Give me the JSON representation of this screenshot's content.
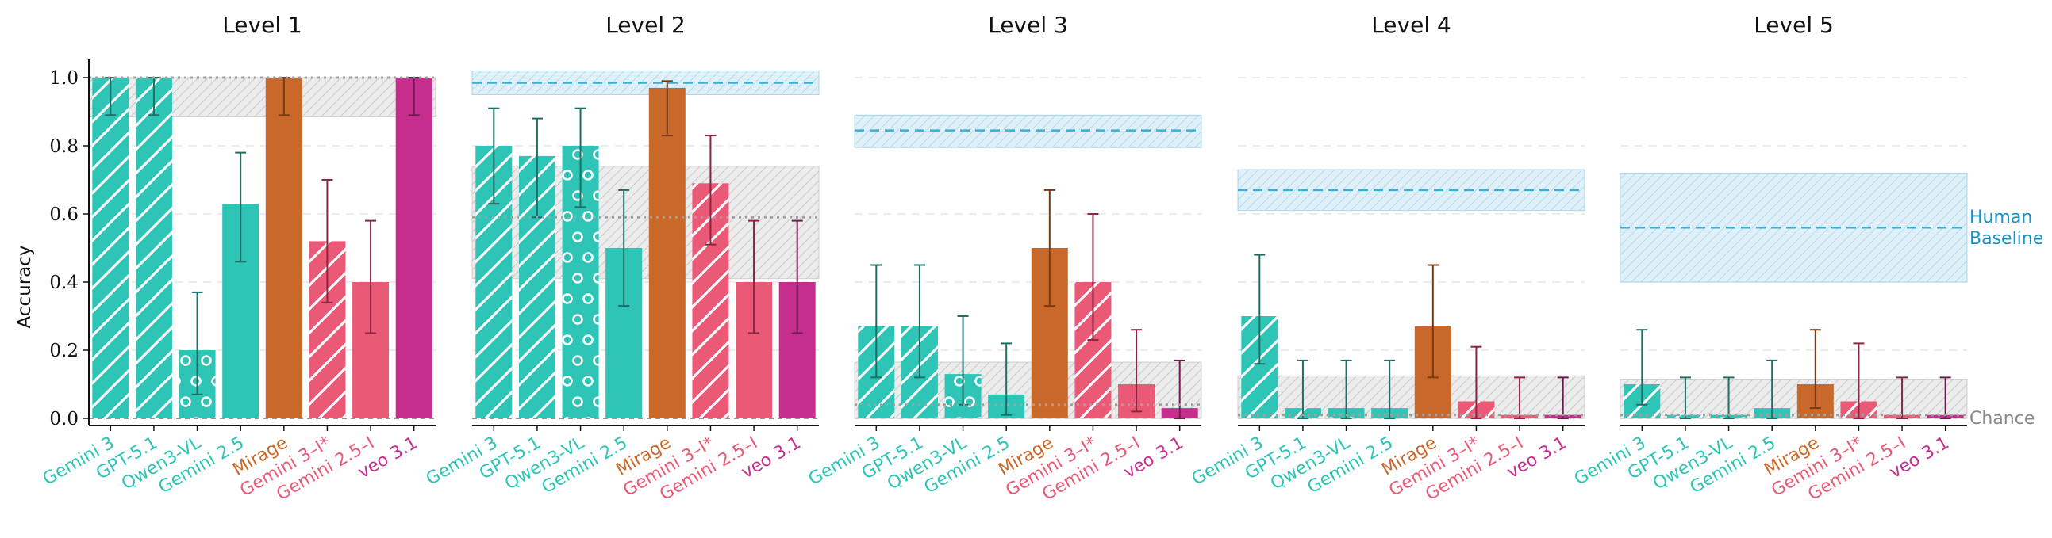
{
  "colors": {
    "teal": "#2EC4B6",
    "teal_err": "#1E6E64",
    "orange": "#C8692B",
    "orange_err": "#7A3A12",
    "pink": "#EA5A77",
    "pink_err": "#8B2440",
    "magenta": "#C62E8E",
    "magenta_err": "#701850",
    "human": "#3AAED8",
    "human_label": "#1B92C4",
    "chance_label": "#888888"
  },
  "y_axis_label": "Accuracy",
  "human_label_line1": "Human",
  "human_label_line2": "Baseline",
  "chance_label": "Chance",
  "chart_data": [
    {
      "type": "bar",
      "title": "Level 1",
      "categories": [
        "Gemini 3",
        "GPT-5.1",
        "Qwen3-VL",
        "Gemini 2.5",
        "Mirage",
        "Gemini 3–I*",
        "Gemini 2.5–I",
        "veo 3.1"
      ],
      "values": [
        1.0,
        1.0,
        0.2,
        0.63,
        1.0,
        0.52,
        0.4,
        1.0
      ],
      "err_low": [
        0.89,
        0.89,
        0.07,
        0.46,
        0.89,
        0.34,
        0.25,
        0.89
      ],
      "err_high": [
        1.0,
        1.0,
        0.37,
        0.78,
        1.0,
        0.7,
        0.58,
        1.0
      ],
      "human_mean": null,
      "human_low": null,
      "human_high": null,
      "gray_low": 0.885,
      "gray_high": 1.0,
      "gray_mean": 1.0,
      "chance": 0.0,
      "ylim": [
        0,
        1.0
      ],
      "yticks": [
        "0.0",
        "0.2",
        "0.4",
        "0.6",
        "0.8",
        "1.0"
      ]
    },
    {
      "type": "bar",
      "title": "Level 2",
      "categories": [
        "Gemini 3",
        "GPT-5.1",
        "Qwen3-VL",
        "Gemini 2.5",
        "Mirage",
        "Gemini 3–I*",
        "Gemini 2.5–I",
        "veo 3.1"
      ],
      "values": [
        0.8,
        0.77,
        0.8,
        0.5,
        0.97,
        0.69,
        0.4,
        0.4
      ],
      "err_low": [
        0.63,
        0.59,
        0.62,
        0.33,
        0.83,
        0.51,
        0.25,
        0.25
      ],
      "err_high": [
        0.91,
        0.88,
        0.91,
        0.67,
        0.99,
        0.83,
        0.58,
        0.58
      ],
      "human_mean": 0.985,
      "human_low": 0.95,
      "human_high": 1.02,
      "gray_low": 0.41,
      "gray_high": 0.74,
      "gray_mean": 0.59,
      "chance": 0.0,
      "ylim": [
        0,
        1.0
      ]
    },
    {
      "type": "bar",
      "title": "Level 3",
      "categories": [
        "Gemini 3",
        "GPT-5.1",
        "Qwen3-VL",
        "Gemini 2.5",
        "Mirage",
        "Gemini 3–I*",
        "Gemini 2.5–I",
        "veo 3.1"
      ],
      "values": [
        0.27,
        0.27,
        0.13,
        0.07,
        0.5,
        0.4,
        0.1,
        0.03
      ],
      "err_low": [
        0.12,
        0.12,
        0.04,
        0.01,
        0.33,
        0.23,
        0.02,
        0.0
      ],
      "err_high": [
        0.45,
        0.45,
        0.3,
        0.22,
        0.67,
        0.6,
        0.26,
        0.17
      ],
      "human_mean": 0.845,
      "human_low": 0.795,
      "human_high": 0.89,
      "gray_low": 0.0,
      "gray_high": 0.165,
      "gray_mean": 0.04,
      "chance": 0.0,
      "ylim": [
        0,
        1.0
      ]
    },
    {
      "type": "bar",
      "title": "Level 4",
      "categories": [
        "Gemini 3",
        "GPT-5.1",
        "Qwen3-VL",
        "Gemini 2.5",
        "Mirage",
        "Gemini 3–I*",
        "Gemini 2.5–I",
        "veo 3.1"
      ],
      "values": [
        0.3,
        0.03,
        0.03,
        0.03,
        0.27,
        0.05,
        0.01,
        0.01
      ],
      "err_low": [
        0.16,
        0.0,
        0.0,
        0.0,
        0.12,
        0.0,
        0.0,
        0.0
      ],
      "err_high": [
        0.48,
        0.17,
        0.17,
        0.17,
        0.45,
        0.21,
        0.12,
        0.12
      ],
      "human_mean": 0.67,
      "human_low": 0.61,
      "human_high": 0.73,
      "gray_low": 0.0,
      "gray_high": 0.125,
      "gray_mean": 0.01,
      "chance": 0.0,
      "ylim": [
        0,
        1.0
      ]
    },
    {
      "type": "bar",
      "title": "Level 5",
      "categories": [
        "Gemini 3",
        "GPT-5.1",
        "Qwen3-VL",
        "Gemini 2.5",
        "Mirage",
        "Gemini 3–I*",
        "Gemini 2.5–I",
        "veo 3.1"
      ],
      "values": [
        0.1,
        0.01,
        0.01,
        0.03,
        0.1,
        0.05,
        0.01,
        0.01
      ],
      "err_low": [
        0.04,
        0.0,
        0.0,
        0.0,
        0.03,
        0.0,
        0.0,
        0.0
      ],
      "err_high": [
        0.26,
        0.12,
        0.12,
        0.17,
        0.26,
        0.22,
        0.12,
        0.12
      ],
      "human_mean": 0.56,
      "human_low": 0.4,
      "human_high": 0.72,
      "gray_low": 0.0,
      "gray_high": 0.115,
      "gray_mean": 0.01,
      "chance": 0.0,
      "ylim": [
        0,
        1.0
      ]
    }
  ]
}
